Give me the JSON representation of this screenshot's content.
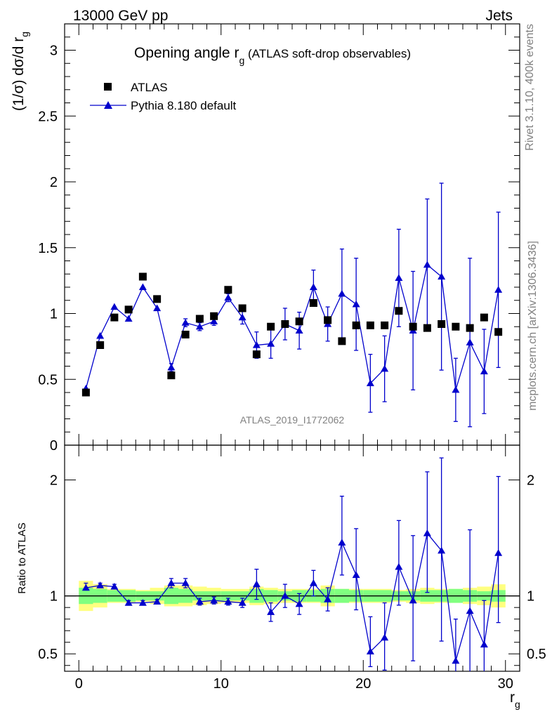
{
  "header": {
    "left": "13000 GeV pp",
    "right": "Jets"
  },
  "side_labels": {
    "rivet": "Rivet 3.1.10,  400k events",
    "mcplots": "mcplots.cern.ch [arXiv:1306.3436]"
  },
  "colors": {
    "mc": "#0000cc",
    "data": "#000000",
    "band_inner": "#80ff80",
    "band_outer": "#ffff80",
    "watermark": "#808080"
  },
  "chart_data": [
    {
      "type": "scatter",
      "title_main": "Opening angle r",
      "title_sub": "g",
      "title_rest": " (ATLAS soft-drop observables)",
      "ylabel": "(1/σ) dσ/d r",
      "ylabel_sub": "g",
      "watermark": "ATLAS_2019_I1772062",
      "xlim": [
        -1,
        31
      ],
      "ylim": [
        0,
        3.2
      ],
      "yticks": [
        0,
        0.5,
        1,
        1.5,
        2,
        2.5,
        3
      ],
      "yticklabels": [
        "0",
        "0.5",
        "1",
        "1.5",
        "2",
        "2.5",
        "3"
      ],
      "legend": [
        {
          "label": "ATLAS",
          "marker": "square"
        },
        {
          "label": "Pythia 8.180 default",
          "marker": "triangle"
        }
      ],
      "series": [
        {
          "name": "ATLAS",
          "x": [
            0.5,
            1.5,
            2.5,
            3.5,
            4.5,
            5.5,
            6.5,
            7.5,
            8.5,
            9.5,
            10.5,
            11.5,
            12.5,
            13.5,
            14.5,
            15.5,
            16.5,
            17.5,
            18.5,
            19.5,
            20.5,
            21.5,
            22.5,
            23.5,
            24.5,
            25.5,
            26.5,
            27.5,
            28.5,
            29.5
          ],
          "y": [
            0.4,
            0.76,
            0.97,
            1.03,
            1.28,
            1.11,
            0.53,
            0.84,
            0.96,
            0.98,
            1.18,
            1.04,
            0.69,
            0.9,
            0.92,
            0.94,
            1.08,
            0.95,
            0.79,
            0.91,
            0.91,
            0.91,
            1.02,
            0.9,
            0.89,
            0.92,
            0.9,
            0.89,
            0.97,
            0.86
          ]
        },
        {
          "name": "Pythia 8.180 default",
          "x": [
            0.5,
            1.5,
            2.5,
            3.5,
            4.5,
            5.5,
            6.5,
            7.5,
            8.5,
            9.5,
            10.5,
            11.5,
            12.5,
            13.5,
            14.5,
            15.5,
            16.5,
            17.5,
            18.5,
            19.5,
            20.5,
            21.5,
            22.5,
            23.5,
            24.5,
            25.5,
            26.5,
            27.5,
            28.5,
            29.5
          ],
          "y": [
            0.43,
            0.83,
            1.05,
            0.96,
            1.2,
            1.04,
            0.59,
            0.93,
            0.9,
            0.94,
            1.12,
            0.97,
            0.76,
            0.77,
            0.92,
            0.87,
            1.2,
            0.92,
            1.15,
            1.07,
            0.47,
            0.58,
            1.27,
            0.87,
            1.37,
            1.28,
            0.42,
            0.78,
            0.56,
            1.18
          ],
          "err": [
            0.01,
            0.01,
            0.01,
            0.01,
            0.01,
            0.01,
            0.03,
            0.03,
            0.03,
            0.03,
            0.03,
            0.05,
            0.1,
            0.11,
            0.12,
            0.14,
            0.13,
            0.13,
            0.34,
            0.35,
            0.22,
            0.25,
            0.37,
            0.45,
            0.5,
            0.71,
            0.24,
            0.64,
            0.32,
            0.59
          ]
        }
      ]
    },
    {
      "type": "scatter",
      "ylabel": "Ratio to ATLAS",
      "xlabel": "r",
      "xlabel_sub": "g",
      "xlim": [
        -1,
        31
      ],
      "ylim": [
        0.35,
        2.3
      ],
      "xticks": [
        0,
        10,
        20,
        30
      ],
      "xticklabels": [
        "0",
        "10",
        "20",
        "30"
      ],
      "yticks": [
        0.5,
        1,
        2
      ],
      "yticklabels": [
        "0.5",
        "1",
        "2"
      ],
      "series": [
        {
          "name": "Pythia 8.180 default / ATLAS",
          "x": [
            0.5,
            1.5,
            2.5,
            3.5,
            4.5,
            5.5,
            6.5,
            7.5,
            8.5,
            9.5,
            10.5,
            11.5,
            12.5,
            13.5,
            14.5,
            15.5,
            16.5,
            17.5,
            18.5,
            19.5,
            20.5,
            21.5,
            22.5,
            23.5,
            24.5,
            25.5,
            26.5,
            27.5,
            28.5,
            29.5
          ],
          "y": [
            1.07,
            1.09,
            1.08,
            0.94,
            0.94,
            0.95,
            1.11,
            1.11,
            0.95,
            0.96,
            0.95,
            0.94,
            1.1,
            0.86,
            1.0,
            0.93,
            1.11,
            0.97,
            1.46,
            1.18,
            0.52,
            0.64,
            1.25,
            0.96,
            1.54,
            1.39,
            0.44,
            0.87,
            0.58,
            1.37
          ],
          "err_low": [
            0.02,
            0.02,
            0.02,
            0.02,
            0.02,
            0.02,
            0.04,
            0.04,
            0.03,
            0.03,
            0.03,
            0.04,
            0.13,
            0.08,
            0.1,
            0.09,
            0.11,
            0.1,
            0.28,
            0.3,
            0.13,
            0.28,
            0.33,
            0.52,
            0.51,
            0.78,
            0.19,
            0.6,
            0.35,
            0.6
          ],
          "err_high": [
            0.04,
            0.02,
            0.02,
            0.02,
            0.02,
            0.02,
            0.04,
            0.04,
            0.03,
            0.03,
            0.03,
            0.04,
            0.13,
            0.08,
            0.1,
            0.09,
            0.11,
            0.1,
            0.4,
            0.4,
            0.3,
            0.3,
            0.4,
            0.56,
            0.53,
            0.8,
            0.36,
            0.7,
            0.38,
            0.66
          ]
        }
      ],
      "band_inner": [
        0.07,
        0.06,
        0.05,
        0.05,
        0.04,
        0.04,
        0.07,
        0.06,
        0.04,
        0.04,
        0.04,
        0.04,
        0.06,
        0.05,
        0.04,
        0.05,
        0.05,
        0.06,
        0.06,
        0.05,
        0.05,
        0.05,
        0.04,
        0.04,
        0.05,
        0.05,
        0.06,
        0.05,
        0.04,
        0.05
      ],
      "band_outer": [
        0.13,
        0.1,
        0.06,
        0.06,
        0.05,
        0.07,
        0.09,
        0.09,
        0.08,
        0.07,
        0.06,
        0.06,
        0.08,
        0.07,
        0.06,
        0.06,
        0.06,
        0.09,
        0.06,
        0.06,
        0.06,
        0.06,
        0.05,
        0.06,
        0.07,
        0.06,
        0.06,
        0.07,
        0.08,
        0.1
      ]
    }
  ]
}
